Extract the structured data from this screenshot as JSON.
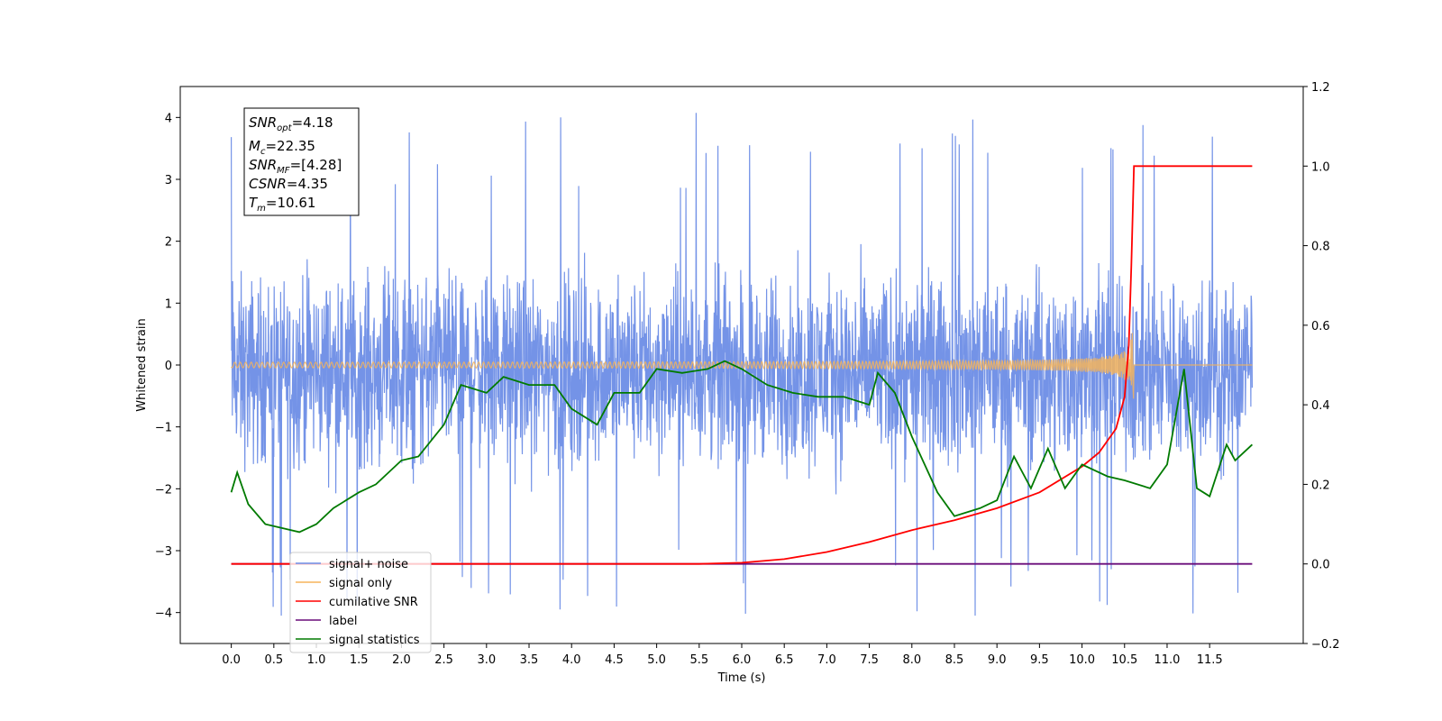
{
  "chart_data": {
    "type": "line",
    "xlabel": "Time (s)",
    "ylabel_left": "Whitened strain",
    "xlim": [
      -0.6,
      12.6
    ],
    "ylim_left": [
      -4.5,
      4.5
    ],
    "ylim_right": [
      -0.2,
      1.2
    ],
    "x_ticks": [
      "0.0",
      "0.5",
      "1.0",
      "1.5",
      "2.0",
      "2.5",
      "3.0",
      "3.5",
      "4.0",
      "4.5",
      "5.0",
      "5.5",
      "6.0",
      "6.5",
      "7.0",
      "7.5",
      "8.0",
      "8.5",
      "9.0",
      "9.5",
      "10.0",
      "10.5",
      "11.0",
      "11.5"
    ],
    "y_ticks_left": [
      "4",
      "3",
      "2",
      "1",
      "0",
      "−1",
      "−2",
      "−3",
      "−4"
    ],
    "y_ticks_right": [
      "1.2",
      "1.0",
      "0.8",
      "0.6",
      "0.4",
      "0.2",
      "0.0",
      "−0.2"
    ],
    "grid": false,
    "legend_position": "lower-left",
    "annotation": {
      "snr_opt": {
        "label": "SNR",
        "sub": "opt",
        "value": "=4.18"
      },
      "mc": {
        "label": "M",
        "sub": "c",
        "value": "=22.35"
      },
      "snr_mf": {
        "label": "SNR",
        "sub": "MF",
        "value": "=[4.28]"
      },
      "csnr": {
        "label": "CSNR",
        "sub": "",
        "value": "=4.35"
      },
      "tm": {
        "label": "T",
        "sub": "m",
        "value": "=10.61"
      }
    },
    "series": [
      {
        "name": "signal+ noise",
        "color": "#6d8de6",
        "axis": "left",
        "style": "dense noise, approx. uniform between -2.5 and 2.3 with spikes to ±4.1",
        "x_range": [
          0.0,
          12.0
        ]
      },
      {
        "name": "signal only",
        "color": "#f5b45c",
        "axis": "left",
        "style": "chirp, near 0 with amplitude growing to ~0.9 at 10.61 s then 0",
        "x_range": [
          0.0,
          12.0
        ]
      },
      {
        "name": "cumilative SNR",
        "color": "#ff0000",
        "axis": "right",
        "x": [
          0.0,
          5.5,
          6.0,
          6.5,
          7.0,
          7.5,
          8.0,
          8.5,
          9.0,
          9.5,
          10.0,
          10.2,
          10.4,
          10.5,
          10.55,
          10.58,
          10.61,
          12.0
        ],
        "values": [
          0.0,
          0.0,
          0.003,
          0.012,
          0.03,
          0.055,
          0.085,
          0.11,
          0.14,
          0.18,
          0.245,
          0.28,
          0.34,
          0.42,
          0.55,
          0.75,
          1.0,
          1.0
        ]
      },
      {
        "name": "label",
        "color": "#6a0d7a",
        "axis": "right",
        "x": [
          0.0,
          12.0
        ],
        "values": [
          0.0,
          0.0
        ]
      },
      {
        "name": "signal statistics",
        "color": "#007a00",
        "axis": "right",
        "x": [
          0.0,
          0.07,
          0.2,
          0.4,
          0.6,
          0.8,
          1.0,
          1.2,
          1.5,
          1.7,
          2.0,
          2.2,
          2.5,
          2.7,
          3.0,
          3.2,
          3.5,
          3.8,
          4.0,
          4.3,
          4.5,
          4.8,
          5.0,
          5.3,
          5.6,
          5.8,
          6.0,
          6.3,
          6.6,
          6.9,
          7.2,
          7.5,
          7.6,
          7.8,
          8.0,
          8.3,
          8.5,
          8.8,
          9.0,
          9.2,
          9.4,
          9.6,
          9.8,
          10.0,
          10.3,
          10.5,
          10.8,
          11.0,
          11.2,
          11.35,
          11.5,
          11.7,
          11.8,
          12.0
        ],
        "values": [
          0.18,
          0.23,
          0.15,
          0.1,
          0.09,
          0.08,
          0.1,
          0.14,
          0.18,
          0.2,
          0.26,
          0.27,
          0.35,
          0.45,
          0.43,
          0.47,
          0.45,
          0.45,
          0.39,
          0.35,
          0.43,
          0.43,
          0.49,
          0.48,
          0.49,
          0.51,
          0.49,
          0.45,
          0.43,
          0.42,
          0.42,
          0.4,
          0.48,
          0.43,
          0.32,
          0.18,
          0.12,
          0.14,
          0.16,
          0.27,
          0.19,
          0.29,
          0.19,
          0.25,
          0.22,
          0.21,
          0.19,
          0.25,
          0.49,
          0.19,
          0.17,
          0.3,
          0.26,
          0.3
        ]
      }
    ]
  }
}
